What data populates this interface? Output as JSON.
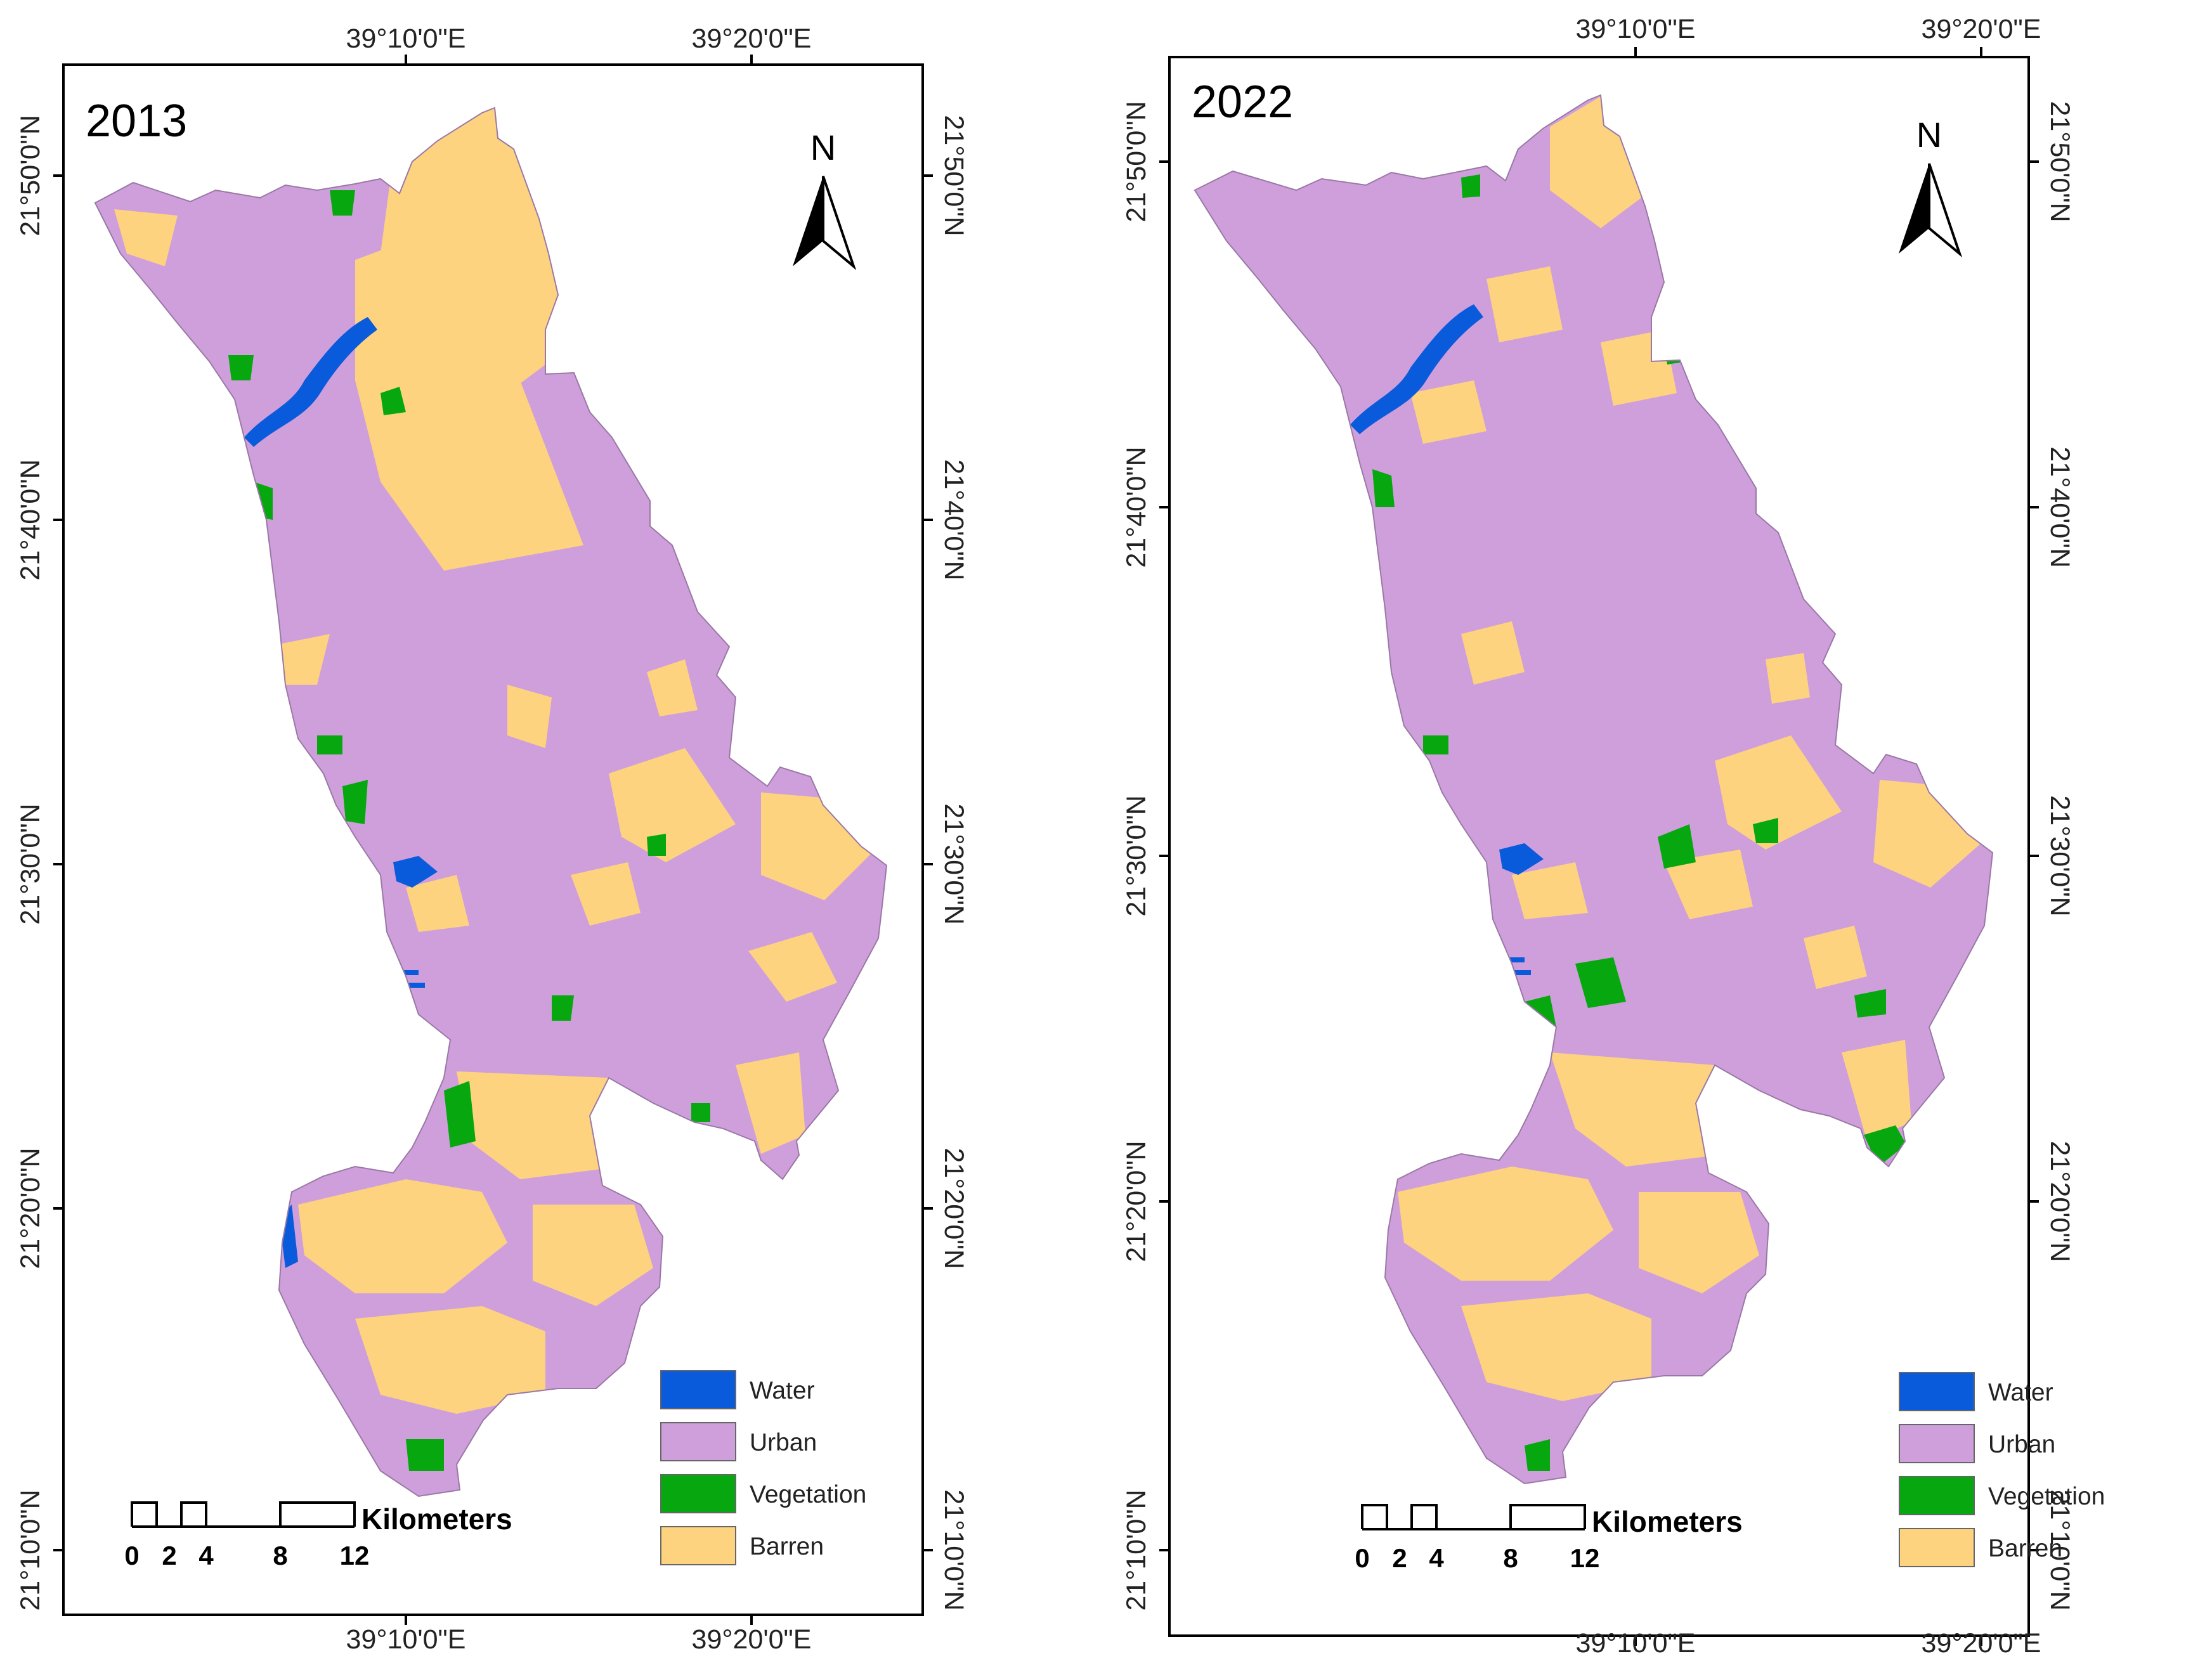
{
  "colors": {
    "water": "#0a5bdc",
    "urban": "#cf9fdb",
    "vegetation": "#07a80f",
    "barren": "#fed37f"
  },
  "icons": [
    "north-arrow-icon",
    "scale-bar-icon"
  ],
  "maps": [
    {
      "year": "2013",
      "top_lon_labels": [
        "39°10'0\"E",
        "39°20'0\"E"
      ],
      "bottom_lon_labels": [
        "39°10'0\"E",
        "39°20'0\"E"
      ],
      "left_lat_labels": [
        "21°50'0\"N",
        "21°40'0\"N",
        "21°30'0\"N",
        "21°20'0\"N",
        "21°10'0\"N"
      ],
      "right_lat_labels": [
        "21°50'0\"N",
        "21°40'0\"N",
        "21°30'0\"N",
        "21°20'0\"N",
        "21°10'0\"N"
      ],
      "north_label": "N",
      "legend": [
        "Water",
        "Urban",
        "Vegetation",
        "Barren"
      ],
      "scale": {
        "title": "Kilometers",
        "ticks": [
          "0",
          "2",
          "4",
          "8",
          "12"
        ]
      }
    },
    {
      "year": "2022",
      "top_lon_labels": [
        "39°10'0\"E",
        "39°20'0\"E"
      ],
      "bottom_lon_labels": [
        "39°10'0\"E",
        "39°20'0\"E"
      ],
      "left_lat_labels": [
        "21°50'0\"N",
        "21°40'0\"N",
        "21°30'0\"N",
        "21°20'0\"N",
        "21°10'0\"N"
      ],
      "right_lat_labels": [
        "21°50'0\"N",
        "21°40'0\"N",
        "21°30'0\"N",
        "21°20'0\"N",
        "21°10'0\"N"
      ],
      "north_label": "N",
      "legend": [
        "Water",
        "Urban",
        "Vegetation",
        "Barren"
      ],
      "scale": {
        "title": "Kilometers",
        "ticks": [
          "0",
          "2",
          "4",
          "8",
          "12"
        ]
      }
    }
  ]
}
